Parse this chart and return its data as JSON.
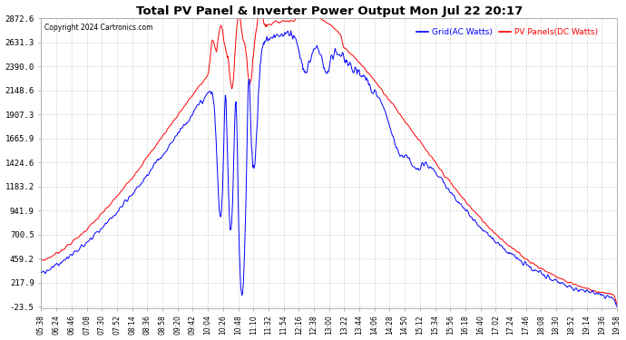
{
  "title": "Total PV Panel & Inverter Power Output Mon Jul 22 20:17",
  "copyright": "Copyright 2024 Cartronics.com",
  "legend_blue": "Grid(AC Watts)",
  "legend_red": "PV Panels(DC Watts)",
  "yticks": [
    2872.6,
    2631.3,
    2390.0,
    2148.6,
    1907.3,
    1665.9,
    1424.6,
    1183.2,
    941.9,
    700.5,
    459.2,
    217.9,
    -23.5
  ],
  "ymin": -23.5,
  "ymax": 2872.6,
  "background_color": "#ffffff",
  "grid_color": "#c8c8c8",
  "blue_color": "#0000ff",
  "red_color": "#ff0000",
  "title_color": "#000000",
  "copyright_color": "#000000",
  "xtick_labels": [
    "05:38",
    "06:24",
    "06:46",
    "07:08",
    "07:30",
    "07:52",
    "08:14",
    "08:36",
    "08:58",
    "09:20",
    "09:42",
    "10:04",
    "10:26",
    "10:48",
    "11:10",
    "11:32",
    "11:54",
    "12:16",
    "12:38",
    "13:00",
    "13:22",
    "13:44",
    "14:06",
    "14:28",
    "14:50",
    "15:12",
    "15:34",
    "15:56",
    "16:18",
    "16:40",
    "17:02",
    "17:24",
    "17:46",
    "18:08",
    "18:30",
    "18:52",
    "19:14",
    "19:36",
    "19:58"
  ],
  "figwidth": 6.9,
  "figheight": 3.75,
  "dpi": 100
}
